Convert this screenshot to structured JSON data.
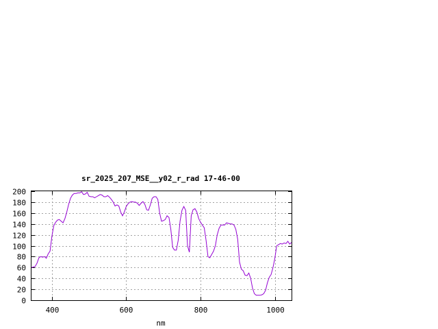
{
  "chart_data": {
    "type": "line",
    "title": "sr_2025_207_MSE__y02_r_rad 17-46-00",
    "xlabel": "nm",
    "ylabel": "",
    "xlim": [
      345,
      1045
    ],
    "ylim": [
      0,
      200
    ],
    "x_ticks": [
      400,
      600,
      800,
      1000
    ],
    "y_ticks": [
      0,
      20,
      40,
      60,
      80,
      100,
      120,
      140,
      160,
      180,
      200
    ],
    "grid": true,
    "series": [
      {
        "color": "#9400d3",
        "points": [
          [
            345,
            60
          ],
          [
            355,
            62
          ],
          [
            360,
            68
          ],
          [
            365,
            78
          ],
          [
            370,
            80
          ],
          [
            375,
            79
          ],
          [
            380,
            80
          ],
          [
            385,
            77
          ],
          [
            390,
            85
          ],
          [
            395,
            90
          ],
          [
            400,
            118
          ],
          [
            405,
            137
          ],
          [
            410,
            143
          ],
          [
            415,
            147
          ],
          [
            420,
            148
          ],
          [
            425,
            145
          ],
          [
            430,
            142
          ],
          [
            435,
            150
          ],
          [
            440,
            162
          ],
          [
            445,
            176
          ],
          [
            450,
            187
          ],
          [
            455,
            193
          ],
          [
            460,
            196
          ],
          [
            465,
            196
          ],
          [
            470,
            197
          ],
          [
            475,
            197
          ],
          [
            480,
            199
          ],
          [
            485,
            194
          ],
          [
            490,
            195
          ],
          [
            495,
            198
          ],
          [
            500,
            191
          ],
          [
            505,
            190
          ],
          [
            510,
            190
          ],
          [
            515,
            188
          ],
          [
            520,
            190
          ],
          [
            525,
            192
          ],
          [
            530,
            194
          ],
          [
            535,
            193
          ],
          [
            540,
            190
          ],
          [
            545,
            190
          ],
          [
            550,
            192
          ],
          [
            555,
            189
          ],
          [
            560,
            185
          ],
          [
            565,
            180
          ],
          [
            570,
            173
          ],
          [
            575,
            175
          ],
          [
            580,
            173
          ],
          [
            585,
            162
          ],
          [
            590,
            155
          ],
          [
            595,
            162
          ],
          [
            600,
            172
          ],
          [
            605,
            177
          ],
          [
            610,
            180
          ],
          [
            615,
            181
          ],
          [
            620,
            180
          ],
          [
            625,
            180
          ],
          [
            630,
            178
          ],
          [
            635,
            174
          ],
          [
            640,
            178
          ],
          [
            645,
            181
          ],
          [
            650,
            176
          ],
          [
            655,
            166
          ],
          [
            660,
            165
          ],
          [
            665,
            175
          ],
          [
            670,
            187
          ],
          [
            675,
            190
          ],
          [
            680,
            190
          ],
          [
            685,
            185
          ],
          [
            690,
            160
          ],
          [
            695,
            145
          ],
          [
            700,
            146
          ],
          [
            705,
            148
          ],
          [
            710,
            155
          ],
          [
            715,
            152
          ],
          [
            720,
            130
          ],
          [
            725,
            97
          ],
          [
            730,
            92
          ],
          [
            735,
            92
          ],
          [
            740,
            110
          ],
          [
            745,
            145
          ],
          [
            750,
            165
          ],
          [
            755,
            172
          ],
          [
            760,
            165
          ],
          [
            765,
            100
          ],
          [
            770,
            88
          ],
          [
            775,
            155
          ],
          [
            780,
            166
          ],
          [
            785,
            168
          ],
          [
            790,
            162
          ],
          [
            795,
            150
          ],
          [
            800,
            143
          ],
          [
            805,
            138
          ],
          [
            810,
            133
          ],
          [
            815,
            110
          ],
          [
            820,
            80
          ],
          [
            825,
            78
          ],
          [
            830,
            84
          ],
          [
            835,
            90
          ],
          [
            840,
            100
          ],
          [
            845,
            120
          ],
          [
            850,
            132
          ],
          [
            855,
            138
          ],
          [
            860,
            138
          ],
          [
            865,
            138
          ],
          [
            870,
            142
          ],
          [
            875,
            141
          ],
          [
            880,
            140
          ],
          [
            885,
            140
          ],
          [
            890,
            138
          ],
          [
            895,
            130
          ],
          [
            900,
            112
          ],
          [
            905,
            70
          ],
          [
            910,
            57
          ],
          [
            915,
            54
          ],
          [
            920,
            46
          ],
          [
            925,
            45
          ],
          [
            930,
            50
          ],
          [
            935,
            40
          ],
          [
            940,
            22
          ],
          [
            945,
            12
          ],
          [
            950,
            9
          ],
          [
            955,
            9
          ],
          [
            960,
            9
          ],
          [
            965,
            10
          ],
          [
            970,
            12
          ],
          [
            975,
            18
          ],
          [
            980,
            32
          ],
          [
            985,
            42
          ],
          [
            990,
            47
          ],
          [
            995,
            60
          ],
          [
            1000,
            77
          ],
          [
            1005,
            100
          ],
          [
            1010,
            102
          ],
          [
            1015,
            104
          ],
          [
            1020,
            103
          ],
          [
            1025,
            105
          ],
          [
            1030,
            104
          ],
          [
            1035,
            108
          ],
          [
            1040,
            103
          ],
          [
            1045,
            106
          ],
          [
            1050,
            101
          ],
          [
            1055,
            110
          ],
          [
            1060,
            104
          ],
          [
            1065,
            106
          ],
          [
            1070,
            101
          ]
        ]
      }
    ]
  }
}
